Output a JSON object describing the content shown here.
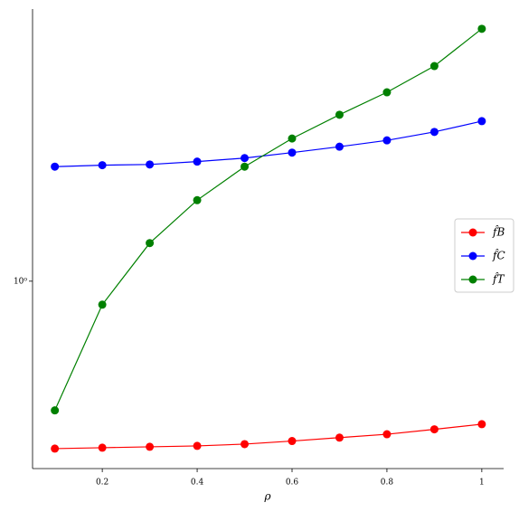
{
  "chart_data": {
    "type": "line",
    "x_label": "ρ",
    "log_y": true,
    "x": [
      0.1,
      0.2,
      0.3,
      0.4,
      0.5,
      0.6,
      0.7,
      0.8,
      0.9,
      1.0
    ],
    "series": [
      {
        "name": "f̂B",
        "color": "#ff0000",
        "values": [
          0.338,
          0.34,
          0.342,
          0.344,
          0.348,
          0.355,
          0.363,
          0.371,
          0.383,
          0.396
        ]
      },
      {
        "name": "f̂C",
        "color": "#0000ff",
        "values": [
          2.1,
          2.12,
          2.13,
          2.17,
          2.22,
          2.3,
          2.39,
          2.49,
          2.63,
          2.82
        ]
      },
      {
        "name": "f̂T",
        "color": "#008000",
        "values": [
          0.433,
          0.859,
          1.28,
          1.69,
          2.1,
          2.52,
          2.94,
          3.4,
          4.03,
          5.13
        ]
      }
    ],
    "xlim": [
      0.053,
      1.046
    ],
    "xticks": [
      0.2,
      0.4,
      0.6,
      0.8,
      1.0
    ],
    "ylim": [
      0.297,
      5.83
    ],
    "yticks": [
      {
        "value": 1,
        "label": "10⁰"
      }
    ],
    "legend": "right"
  }
}
